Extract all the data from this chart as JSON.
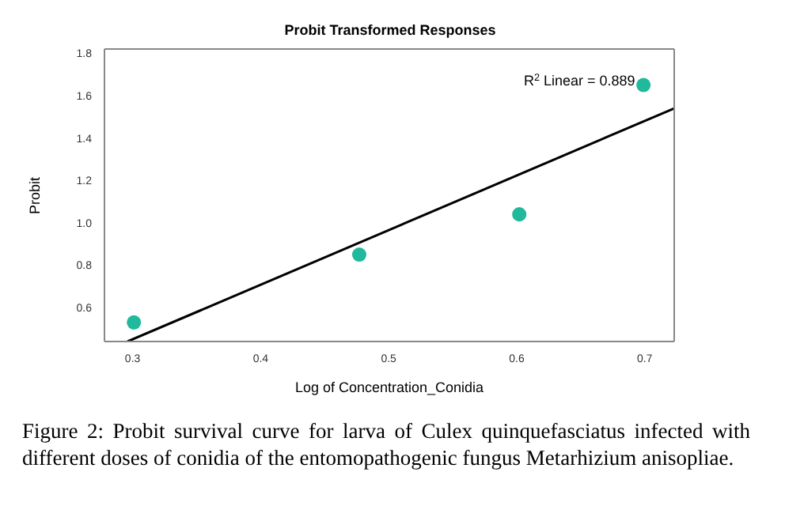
{
  "chart_data": {
    "type": "scatter",
    "title": "Probit Transformed Responses",
    "xlabel": "Log of Concentration_Conidia",
    "ylabel": "Probit",
    "x": [
      0.301,
      0.477,
      0.602,
      0.699
    ],
    "series": [
      {
        "color": "#20b99b",
        "values": [
          0.53,
          0.85,
          1.04,
          1.65
        ],
        "marker": "circle"
      },
      {
        "type": "line",
        "color": "#000000",
        "x": [
          0.296,
          0.723
        ],
        "values": [
          0.44,
          1.54
        ],
        "marker": "none",
        "line_style": "solid"
      }
    ],
    "xlim": [
      0.278,
      0.723
    ],
    "xticks": [
      0.3,
      0.4,
      0.5,
      0.6,
      0.7
    ],
    "ylim": [
      0.44,
      1.82
    ],
    "yticks": [
      {
        "value": 0.6,
        "label": "0.6"
      },
      {
        "value": 0.8,
        "label": "0.8"
      },
      {
        "value": 1,
        "label": "1.0"
      },
      {
        "value": 1.2,
        "label": "1.2"
      },
      {
        "value": 1.4,
        "label": "1.4"
      },
      {
        "value": 1.6,
        "label": "1.6"
      },
      {
        "value": 1.8,
        "label": "1.8"
      }
    ],
    "legend": false,
    "annotations": [
      "R$^{2}$ Linear = 0.889",
      "Figure 2: Probit survival curve for larva of Culex quinquefasciatus infected with different doses of conidia of the entomopathogenic fungus Metarhizium anisopliae."
    ]
  }
}
